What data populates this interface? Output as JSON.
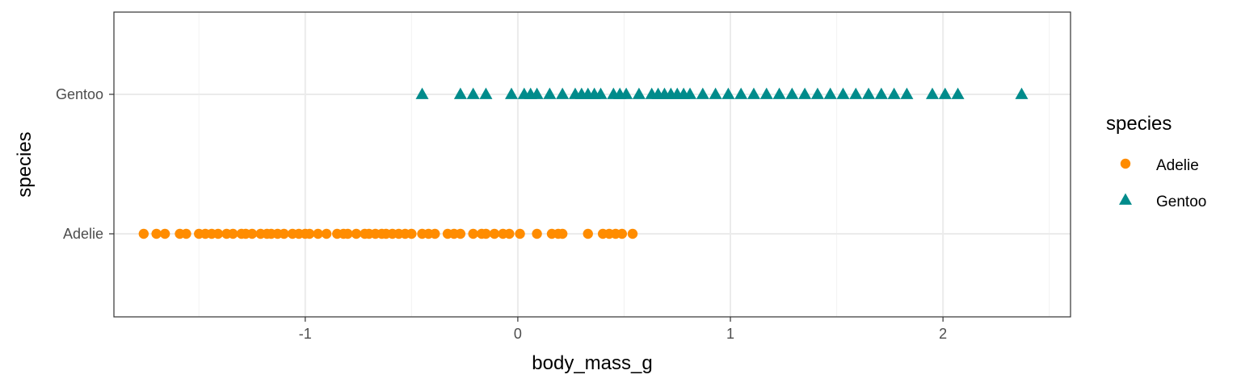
{
  "chart_data": {
    "type": "scatter",
    "xlabel": "body_mass_g",
    "ylabel": "species",
    "xlim": [
      -1.9,
      2.6
    ],
    "x_ticks": [
      -1,
      0,
      1,
      2
    ],
    "x_tick_labels": [
      "-1",
      "0",
      "1",
      "2"
    ],
    "categories": [
      "Adelie",
      "Gentoo"
    ],
    "grid": true,
    "legend": {
      "title": "species",
      "placement": "right"
    },
    "series": [
      {
        "name": "Adelie",
        "category": "Adelie",
        "shape": "circle",
        "color": "#FF8C00",
        "x": [
          -1.76,
          -1.7,
          -1.66,
          -1.59,
          -1.56,
          -1.5,
          -1.47,
          -1.44,
          -1.41,
          -1.37,
          -1.34,
          -1.3,
          -1.28,
          -1.25,
          -1.21,
          -1.18,
          -1.16,
          -1.13,
          -1.1,
          -1.06,
          -1.03,
          -1.0,
          -0.98,
          -0.94,
          -0.9,
          -0.85,
          -0.82,
          -0.8,
          -0.76,
          -0.72,
          -0.7,
          -0.67,
          -0.64,
          -0.62,
          -0.59,
          -0.56,
          -0.53,
          -0.5,
          -0.45,
          -0.42,
          -0.39,
          -0.33,
          -0.3,
          -0.27,
          -0.21,
          -0.17,
          -0.15,
          -0.11,
          -0.07,
          -0.04,
          0.01,
          0.09,
          0.16,
          0.19,
          0.21,
          0.33,
          0.4,
          0.43,
          0.46,
          0.49,
          0.54
        ]
      },
      {
        "name": "Gentoo",
        "category": "Gentoo",
        "shape": "triangle",
        "color": "#008B8B",
        "x": [
          -0.45,
          -0.27,
          -0.21,
          -0.15,
          -0.03,
          0.03,
          0.06,
          0.09,
          0.15,
          0.21,
          0.27,
          0.3,
          0.33,
          0.36,
          0.39,
          0.45,
          0.48,
          0.51,
          0.57,
          0.63,
          0.66,
          0.69,
          0.72,
          0.75,
          0.78,
          0.81,
          0.87,
          0.93,
          0.99,
          1.05,
          1.11,
          1.17,
          1.23,
          1.29,
          1.35,
          1.41,
          1.47,
          1.53,
          1.59,
          1.65,
          1.71,
          1.77,
          1.83,
          1.95,
          2.01,
          2.07,
          2.37
        ]
      }
    ]
  }
}
